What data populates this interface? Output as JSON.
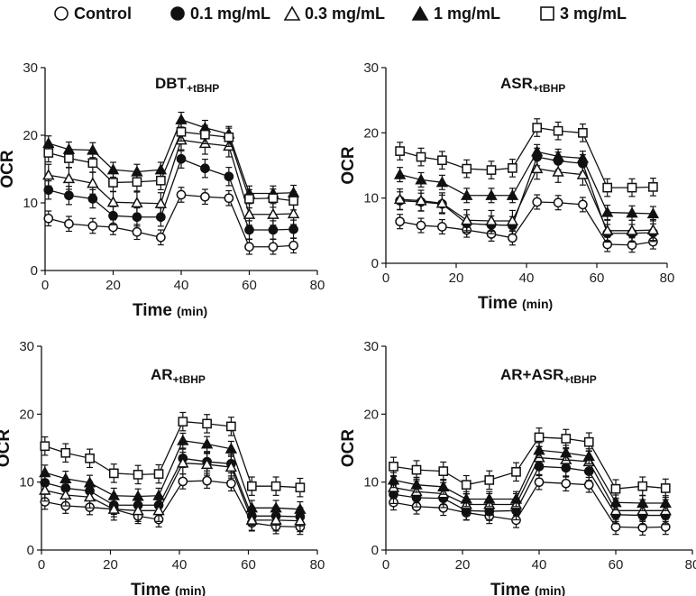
{
  "legend": [
    {
      "label": "Control",
      "marker": "open-circle"
    },
    {
      "label": "0.1 mg/mL",
      "marker": "filled-circle"
    },
    {
      "label": "0.3 mg/mL",
      "marker": "open-triangle"
    },
    {
      "label": "1 mg/mL",
      "marker": "filled-triangle"
    },
    {
      "label": "3 mg/mL",
      "marker": "open-square"
    }
  ],
  "colors": {
    "ink": "#111111",
    "background": "#ffffff"
  },
  "chart_data": [
    {
      "type": "line",
      "title": "DBT",
      "title_sub": "+tBHP",
      "xlabel": "Time",
      "xunit": "(min)",
      "ylabel": "OCR",
      "xlim": [
        0,
        80
      ],
      "ylim": [
        0,
        30
      ],
      "xticks": [
        0,
        20,
        40,
        60,
        80
      ],
      "yticks": [
        0,
        10,
        20,
        30
      ],
      "x": [
        1,
        7,
        14,
        20,
        27,
        34,
        40,
        47,
        54,
        60,
        67,
        73
      ],
      "series": [
        {
          "name": "Control",
          "values": [
            7.7,
            6.9,
            6.6,
            6.4,
            5.7,
            4.9,
            11.2,
            10.9,
            10.7,
            3.5,
            3.5,
            3.7
          ]
        },
        {
          "name": "0.1 mg/mL",
          "values": [
            11.9,
            11.1,
            10.6,
            8.1,
            7.9,
            7.9,
            16.5,
            15.1,
            13.9,
            6.0,
            6.0,
            6.1
          ]
        },
        {
          "name": "0.3 mg/mL",
          "values": [
            14.1,
            13.6,
            12.9,
            10.1,
            10.0,
            9.9,
            19.3,
            18.8,
            18.4,
            8.3,
            8.3,
            8.4
          ]
        },
        {
          "name": "1 mg/mL",
          "values": [
            18.8,
            17.9,
            17.8,
            14.9,
            14.6,
            14.9,
            22.3,
            21.1,
            20.2,
            11.4,
            11.4,
            11.5
          ]
        },
        {
          "name": "3 mg/mL",
          "values": [
            17.4,
            16.6,
            15.9,
            13.0,
            13.1,
            13.3,
            20.5,
            20.1,
            19.7,
            10.6,
            10.7,
            10.3
          ]
        }
      ]
    },
    {
      "type": "line",
      "title": "ASR",
      "title_sub": "+tBHP",
      "xlabel": "Time",
      "xunit": "(min)",
      "ylabel": "OCR",
      "xlim": [
        0,
        80
      ],
      "ylim": [
        0,
        30
      ],
      "xticks": [
        0,
        20,
        40,
        60,
        80
      ],
      "yticks": [
        0,
        10,
        20,
        30
      ],
      "x": [
        4,
        10,
        16,
        23,
        30,
        36,
        43,
        49,
        56,
        63,
        70,
        76
      ],
      "series": [
        {
          "name": "Control",
          "values": [
            6.4,
            5.8,
            5.6,
            5.1,
            4.5,
            3.9,
            9.4,
            9.3,
            9.0,
            2.9,
            2.8,
            3.3
          ]
        },
        {
          "name": "0.1 mg/mL",
          "values": [
            9.6,
            9.4,
            9.1,
            6.1,
            5.9,
            5.8,
            16.3,
            15.7,
            15.3,
            4.6,
            4.6,
            4.7
          ]
        },
        {
          "name": "0.3 mg/mL",
          "values": [
            9.8,
            9.6,
            9.2,
            6.6,
            6.5,
            6.5,
            14.5,
            14.0,
            13.6,
            5.0,
            5.0,
            5.1
          ]
        },
        {
          "name": "1 mg/mL",
          "values": [
            13.6,
            12.8,
            12.4,
            10.4,
            10.4,
            10.4,
            17.1,
            16.4,
            16.1,
            7.8,
            7.7,
            7.6
          ]
        },
        {
          "name": "3 mg/mL",
          "values": [
            17.2,
            16.3,
            15.8,
            14.5,
            14.3,
            14.6,
            20.8,
            20.3,
            20.0,
            11.6,
            11.6,
            11.7
          ]
        }
      ]
    },
    {
      "type": "line",
      "title": "AR",
      "title_sub": "+tBHP",
      "xlabel": "Time",
      "xunit": "(min)",
      "ylabel": "OCR",
      "xlim": [
        0,
        80
      ],
      "ylim": [
        0,
        30
      ],
      "xticks": [
        0,
        20,
        40,
        60,
        80
      ],
      "yticks": [
        0,
        10,
        20,
        30
      ],
      "x": [
        1,
        7,
        14,
        21,
        28,
        34,
        41,
        48,
        55,
        61,
        68,
        75
      ],
      "series": [
        {
          "name": "Control",
          "values": [
            7.1,
            6.5,
            6.3,
            6.0,
            5.0,
            4.5,
            10.1,
            10.2,
            9.8,
            4.0,
            3.5,
            3.4
          ]
        },
        {
          "name": "0.1 mg/mL",
          "values": [
            9.9,
            9.1,
            8.7,
            6.6,
            6.6,
            6.6,
            13.5,
            13.0,
            12.7,
            5.0,
            5.0,
            4.9
          ]
        },
        {
          "name": "0.3 mg/mL",
          "values": [
            8.8,
            8.1,
            7.8,
            6.0,
            5.8,
            5.8,
            12.8,
            12.6,
            12.2,
            4.4,
            4.4,
            4.3
          ]
        },
        {
          "name": "1 mg/mL",
          "values": [
            11.4,
            10.5,
            9.9,
            8.0,
            7.9,
            8.0,
            16.1,
            15.6,
            14.9,
            6.2,
            6.2,
            6.0
          ]
        },
        {
          "name": "3 mg/mL",
          "values": [
            15.3,
            14.3,
            13.5,
            11.3,
            11.1,
            11.2,
            18.9,
            18.6,
            18.2,
            9.4,
            9.4,
            9.2
          ]
        }
      ]
    },
    {
      "type": "line",
      "title": "AR+ASR",
      "title_sub": "+tBHP",
      "xlabel": "Time",
      "xunit": "(min)",
      "ylabel": "OCR",
      "xlim": [
        0,
        80
      ],
      "ylim": [
        0,
        30
      ],
      "xticks": [
        0,
        20,
        40,
        60,
        80
      ],
      "yticks": [
        0,
        10,
        20,
        30
      ],
      "x": [
        2,
        8,
        15,
        21,
        27,
        34,
        40,
        47,
        53,
        60,
        67,
        73
      ],
      "series": [
        {
          "name": "Control",
          "values": [
            7.0,
            6.4,
            6.2,
            5.5,
            5.0,
            4.4,
            10.0,
            9.8,
            9.6,
            3.4,
            3.3,
            3.4
          ]
        },
        {
          "name": "0.1 mg/mL",
          "values": [
            8.2,
            7.7,
            7.6,
            5.8,
            5.7,
            5.8,
            12.3,
            12.1,
            11.6,
            5.2,
            5.1,
            5.1
          ]
        },
        {
          "name": "0.3 mg/mL",
          "values": [
            9.2,
            8.6,
            8.3,
            6.7,
            6.7,
            6.7,
            13.6,
            13.3,
            13.0,
            5.8,
            5.8,
            5.8
          ]
        },
        {
          "name": "1 mg/mL",
          "values": [
            10.3,
            9.6,
            9.3,
            7.5,
            7.5,
            7.5,
            14.7,
            14.3,
            13.8,
            7.0,
            6.9,
            6.9
          ]
        },
        {
          "name": "3 mg/mL",
          "values": [
            12.3,
            11.8,
            11.6,
            9.6,
            10.3,
            11.5,
            16.6,
            16.4,
            15.9,
            9.0,
            9.4,
            9.1
          ]
        }
      ]
    }
  ]
}
